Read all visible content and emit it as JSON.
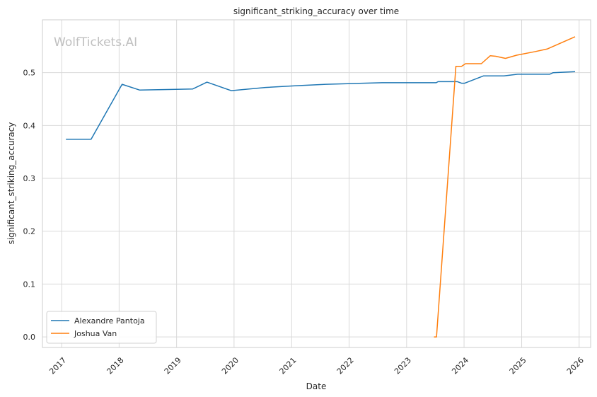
{
  "chart_data": {
    "type": "line",
    "title": "significant_striking_accuracy over time",
    "xlabel": "Date",
    "ylabel": "significant_striking_accuracy",
    "watermark": "WolfTickets.AI",
    "grid": true,
    "legend_position": "lower-left",
    "xlim": [
      "2016-09-01",
      "2026-03-15"
    ],
    "ylim": [
      -0.02,
      0.6
    ],
    "x_ticks": [
      "2017",
      "2018",
      "2019",
      "2020",
      "2021",
      "2022",
      "2023",
      "2024",
      "2025",
      "2026"
    ],
    "y_ticks": [
      "0.0",
      "0.1",
      "0.2",
      "0.3",
      "0.4",
      "0.5"
    ],
    "series": [
      {
        "name": "Alexandre Pantoja",
        "color": "#1f77b4",
        "points": [
          {
            "x": "2017-01-28",
            "y": 0.374
          },
          {
            "x": "2017-07-07",
            "y": 0.374
          },
          {
            "x": "2018-01-20",
            "y": 0.478
          },
          {
            "x": "2018-05-12",
            "y": 0.467
          },
          {
            "x": "2019-04-13",
            "y": 0.469
          },
          {
            "x": "2019-07-13",
            "y": 0.482
          },
          {
            "x": "2019-12-14",
            "y": 0.466
          },
          {
            "x": "2020-07-18",
            "y": 0.472
          },
          {
            "x": "2021-01-20",
            "y": 0.475
          },
          {
            "x": "2021-08-07",
            "y": 0.478
          },
          {
            "x": "2022-07-30",
            "y": 0.481
          },
          {
            "x": "2023-07-08",
            "y": 0.481
          },
          {
            "x": "2023-07-20",
            "y": 0.483
          },
          {
            "x": "2023-11-20",
            "y": 0.483
          },
          {
            "x": "2023-12-16",
            "y": 0.48
          },
          {
            "x": "2024-01-05",
            "y": 0.48
          },
          {
            "x": "2024-05-04",
            "y": 0.494
          },
          {
            "x": "2024-09-10",
            "y": 0.494
          },
          {
            "x": "2024-12-07",
            "y": 0.497
          },
          {
            "x": "2025-06-28",
            "y": 0.497
          },
          {
            "x": "2025-07-20",
            "y": 0.5
          },
          {
            "x": "2025-12-06",
            "y": 0.502
          }
        ]
      },
      {
        "name": "Joshua Van",
        "color": "#ff7f0e",
        "points": [
          {
            "x": "2023-06-24",
            "y": 0.0
          },
          {
            "x": "2023-07-10",
            "y": 0.0
          },
          {
            "x": "2023-11-10",
            "y": 0.512
          },
          {
            "x": "2023-12-16",
            "y": 0.512
          },
          {
            "x": "2024-01-10",
            "y": 0.517
          },
          {
            "x": "2024-04-20",
            "y": 0.517
          },
          {
            "x": "2024-06-15",
            "y": 0.532
          },
          {
            "x": "2024-07-20",
            "y": 0.531
          },
          {
            "x": "2024-09-20",
            "y": 0.527
          },
          {
            "x": "2024-11-30",
            "y": 0.533
          },
          {
            "x": "2025-03-30",
            "y": 0.54
          },
          {
            "x": "2025-06-14",
            "y": 0.545
          },
          {
            "x": "2025-12-06",
            "y": 0.568
          }
        ]
      }
    ]
  }
}
